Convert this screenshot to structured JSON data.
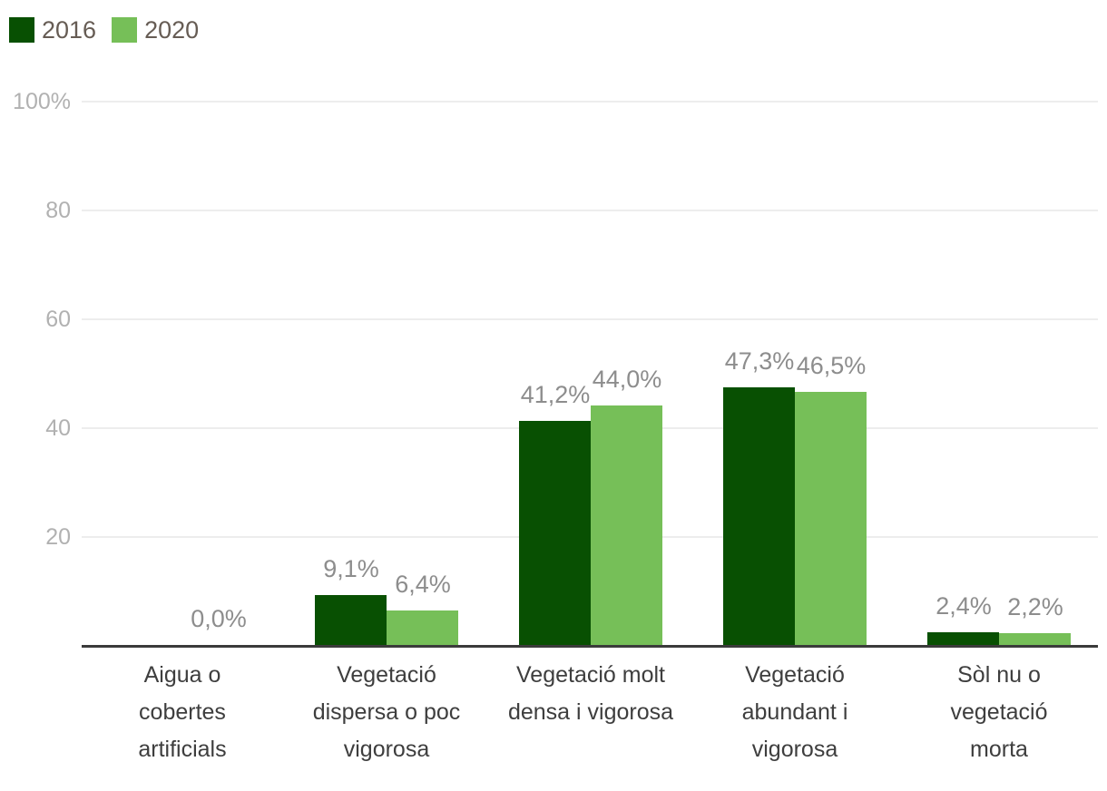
{
  "colors": {
    "background": "#ffffff",
    "series_2016": "#085002",
    "series_2020": "#76bf58",
    "grid_line": "#ededed",
    "axis_line": "#3b3b3b",
    "tick_text": "#b1b1b1",
    "value_text": "#8d8d8d",
    "category_text": "#3e3e3e",
    "legend_text": "#665c54"
  },
  "legend": {
    "position": "top-left",
    "items": [
      {
        "label": "2016",
        "color": "#085002"
      },
      {
        "label": "2020",
        "color": "#76bf58"
      }
    ]
  },
  "chart_data": {
    "type": "bar",
    "title": "",
    "xlabel": "",
    "ylabel": "",
    "ylim": [
      0,
      100
    ],
    "grid": true,
    "legend_position": "top-left",
    "decimal_separator": ",",
    "categories": [
      "Aigua o\ncobertes\nartificials",
      "Vegetació\ndispersa o poc\nvigorosa",
      "Vegetació molt\ndensa i vigorosa",
      "Vegetació\nabundant i\nvigorosa",
      "Sòl nu o\nvegetació\nmorta"
    ],
    "series": [
      {
        "name": "2016",
        "color": "#085002",
        "values": [
          0.0,
          9.1,
          41.2,
          47.3,
          2.4
        ],
        "labels": [
          "",
          "9,1%",
          "41,2%",
          "47,3%",
          "2,4%"
        ]
      },
      {
        "name": "2020",
        "color": "#76bf58",
        "values": [
          0.0,
          6.4,
          44.0,
          46.5,
          2.2
        ],
        "labels": [
          "0,0%",
          "6,4%",
          "44,0%",
          "46,5%",
          "2,2%"
        ]
      }
    ],
    "y_axis": {
      "ticks": [
        {
          "value": 100,
          "label": "100%"
        },
        {
          "value": 80,
          "label": "80"
        },
        {
          "value": 60,
          "label": "60"
        },
        {
          "value": 40,
          "label": "40"
        },
        {
          "value": 20,
          "label": "20"
        }
      ]
    }
  }
}
